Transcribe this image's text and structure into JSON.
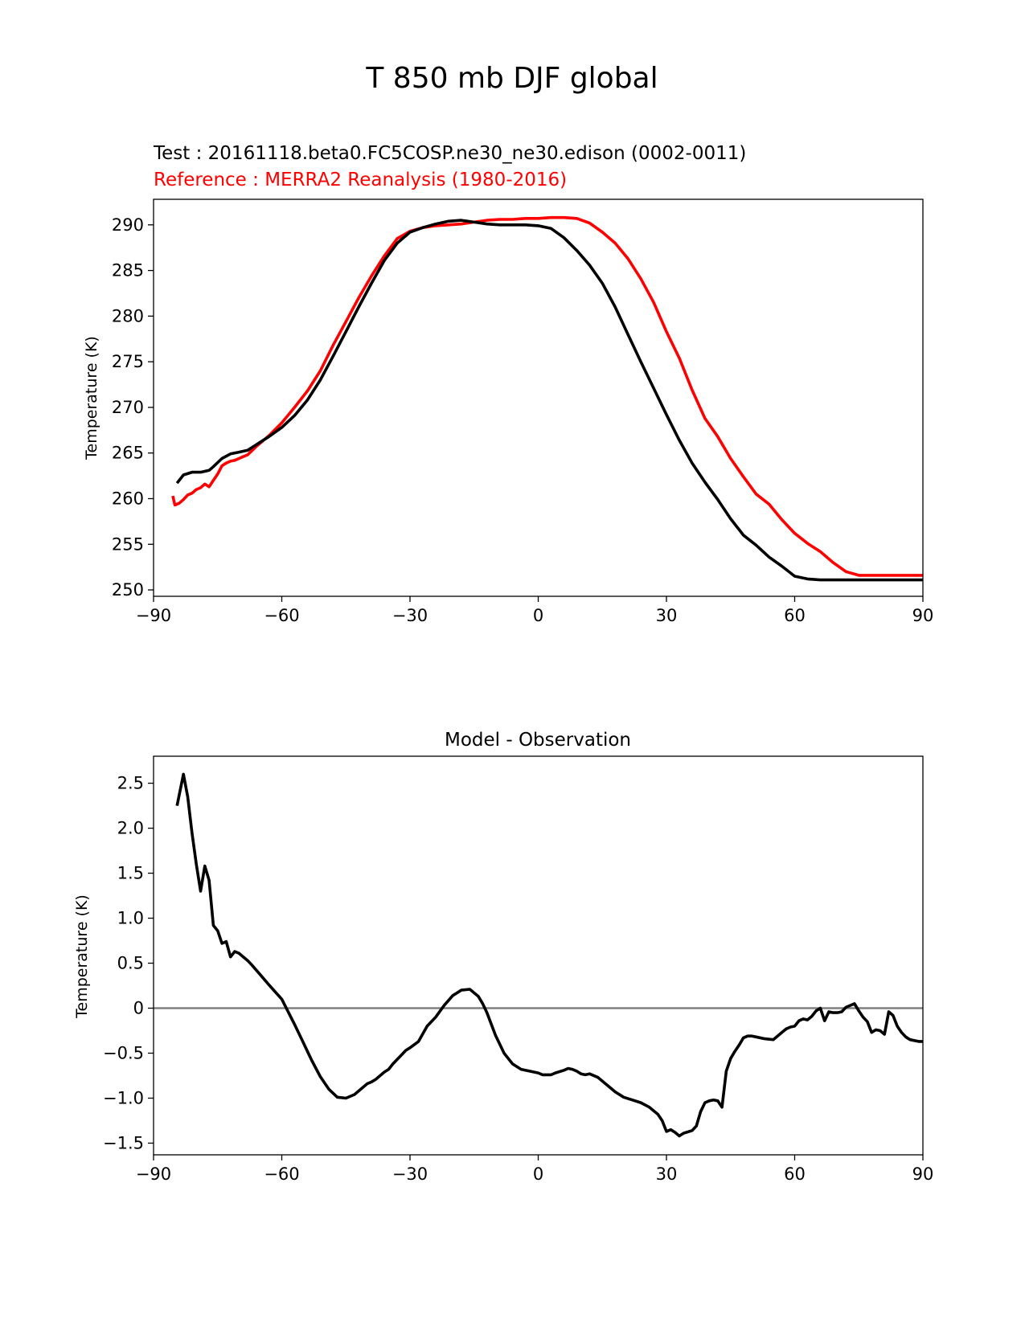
{
  "figure": {
    "suptitle": "T 850 mb DJF global"
  },
  "colors": {
    "test": "#000000",
    "reference": "#ff0000",
    "diff": "#000000",
    "zero_line": "#808080"
  },
  "chart_data": [
    {
      "type": "line",
      "test_label": "Test : 20161118.beta0.FC5COSP.ne30_ne30.edison (0002-0011)",
      "reference_label": "Reference : MERRA2 Reanalysis (1980-2016)",
      "xlabel": "",
      "ylabel": "Temperature (K)",
      "xlim": [
        -90,
        90
      ],
      "ylim": [
        249.3,
        292.8
      ],
      "xticks": [
        -90,
        -60,
        -30,
        0,
        30,
        60,
        90
      ],
      "yticks": [
        250,
        255,
        260,
        265,
        270,
        275,
        280,
        285,
        290
      ],
      "series": [
        {
          "role": "test",
          "x": [
            -84.5,
            -83,
            -81,
            -79,
            -77,
            -76,
            -74,
            -72,
            -70,
            -68,
            -66,
            -63,
            -60,
            -57,
            -54,
            -51,
            -48,
            -45,
            -42,
            -39,
            -36,
            -33,
            -30,
            -27,
            -24,
            -21,
            -18,
            -15,
            -12,
            -9,
            -6,
            -3,
            0,
            3,
            6,
            9,
            12,
            15,
            18,
            21,
            24,
            27,
            30,
            33,
            36,
            39,
            42,
            45,
            48,
            51,
            54,
            57,
            60,
            63,
            66,
            69,
            72,
            75,
            78,
            81,
            84,
            87,
            90
          ],
          "values": [
            261.7,
            262.6,
            262.9,
            262.9,
            263.1,
            263.5,
            264.4,
            264.9,
            265.1,
            265.3,
            265.9,
            266.8,
            267.8,
            269.1,
            270.8,
            273.0,
            275.6,
            278.3,
            281.0,
            283.6,
            286.1,
            288.0,
            289.2,
            289.7,
            290.1,
            290.4,
            290.5,
            290.3,
            290.1,
            290.0,
            290.0,
            290.0,
            289.9,
            289.6,
            288.6,
            287.2,
            285.6,
            283.6,
            281.0,
            278.0,
            275.0,
            272.1,
            269.2,
            266.4,
            263.9,
            261.8,
            259.9,
            257.8,
            256.0,
            254.9,
            253.6,
            252.6,
            251.5,
            251.2,
            251.1,
            251.1,
            251.1,
            251.1,
            251.1,
            251.1,
            251.1,
            251.1,
            251.1
          ]
        },
        {
          "role": "reference",
          "x": [
            -85.5,
            -85,
            -84,
            -83,
            -82,
            -81,
            -80,
            -79,
            -78,
            -77,
            -76,
            -75,
            -74,
            -73,
            -72,
            -71,
            -70,
            -69,
            -68,
            -66,
            -63,
            -60,
            -57,
            -54,
            -51,
            -48,
            -45,
            -42,
            -39,
            -36,
            -33,
            -30,
            -27,
            -24,
            -21,
            -18,
            -15,
            -12,
            -9,
            -6,
            -3,
            0,
            3,
            6,
            9,
            12,
            15,
            18,
            21,
            24,
            27,
            30,
            33,
            36,
            39,
            42,
            45,
            48,
            51,
            54,
            57,
            60,
            63,
            66,
            69,
            72,
            75,
            78,
            81,
            84,
            87,
            90
          ],
          "values": [
            260.3,
            259.3,
            259.5,
            259.9,
            260.4,
            260.6,
            261.0,
            261.2,
            261.6,
            261.3,
            262.0,
            262.7,
            263.6,
            263.9,
            264.1,
            264.2,
            264.4,
            264.6,
            264.8,
            265.7,
            266.9,
            268.3,
            270.0,
            271.8,
            274.0,
            276.8,
            279.4,
            282.0,
            284.4,
            286.6,
            288.5,
            289.3,
            289.7,
            289.9,
            290.0,
            290.1,
            290.3,
            290.5,
            290.6,
            290.6,
            290.7,
            290.7,
            290.8,
            290.8,
            290.7,
            290.2,
            289.2,
            288.0,
            286.3,
            284.1,
            281.5,
            278.3,
            275.4,
            271.9,
            268.8,
            266.8,
            264.4,
            262.4,
            260.5,
            259.4,
            257.7,
            256.2,
            255.1,
            254.2,
            253.0,
            252.0,
            251.6,
            251.6,
            251.6,
            251.6,
            251.6,
            251.6
          ]
        }
      ]
    },
    {
      "type": "line",
      "title": "Model - Observation",
      "xlabel": "",
      "ylabel": "Temperature (K)",
      "xlim": [
        -90,
        90
      ],
      "ylim": [
        -1.63,
        2.8
      ],
      "xticks": [
        -90,
        -60,
        -30,
        0,
        30,
        60,
        90
      ],
      "yticks": [
        -1.5,
        -1.0,
        -0.5,
        0.0,
        0.5,
        1.0,
        1.5,
        2.0,
        2.5
      ],
      "reference_line": 0.0,
      "series": [
        {
          "role": "diff",
          "x": [
            -84.5,
            -83,
            -82,
            -81,
            -80,
            -79,
            -78,
            -77,
            -76,
            -75,
            -74,
            -73,
            -72,
            -71,
            -70,
            -69,
            -68,
            -67,
            -65,
            -63,
            -60,
            -57,
            -55,
            -54,
            -53,
            -51,
            -49,
            -47,
            -45,
            -43,
            -41,
            -40,
            -39,
            -38,
            -36,
            -35,
            -34,
            -32,
            -31,
            -30,
            -28,
            -26,
            -24,
            -22,
            -20,
            -18,
            -16,
            -14,
            -13,
            -12,
            -10,
            -8,
            -6,
            -4,
            -2,
            -1,
            0,
            1,
            3,
            4,
            6,
            7,
            8,
            9,
            10,
            11,
            12,
            14,
            16,
            18,
            20,
            22,
            24,
            26,
            28,
            29,
            30,
            31,
            32,
            33,
            34,
            36,
            37,
            38,
            39,
            40,
            41,
            42,
            43,
            44,
            45,
            46,
            47,
            48,
            49,
            50,
            51,
            53,
            55,
            56,
            57,
            58,
            59,
            60,
            61,
            62,
            63,
            64,
            65,
            66,
            67,
            68,
            69,
            70,
            71,
            72,
            73,
            74,
            75,
            76,
            77,
            78,
            79,
            80,
            81,
            82,
            83,
            84,
            85,
            86,
            87,
            88,
            89,
            90
          ],
          "values": [
            2.25,
            2.6,
            2.35,
            1.95,
            1.6,
            1.3,
            1.58,
            1.42,
            0.92,
            0.86,
            0.72,
            0.74,
            0.57,
            0.63,
            0.61,
            0.57,
            0.53,
            0.48,
            0.37,
            0.26,
            0.1,
            -0.18,
            -0.38,
            -0.48,
            -0.58,
            -0.76,
            -0.9,
            -0.99,
            -1.0,
            -0.96,
            -0.88,
            -0.84,
            -0.82,
            -0.79,
            -0.71,
            -0.68,
            -0.62,
            -0.52,
            -0.47,
            -0.44,
            -0.37,
            -0.2,
            -0.1,
            0.03,
            0.14,
            0.2,
            0.21,
            0.13,
            0.05,
            -0.05,
            -0.3,
            -0.5,
            -0.62,
            -0.68,
            -0.7,
            -0.71,
            -0.72,
            -0.74,
            -0.74,
            -0.72,
            -0.69,
            -0.67,
            -0.68,
            -0.7,
            -0.73,
            -0.74,
            -0.73,
            -0.77,
            -0.85,
            -0.93,
            -0.99,
            -1.02,
            -1.05,
            -1.1,
            -1.18,
            -1.25,
            -1.37,
            -1.35,
            -1.38,
            -1.42,
            -1.39,
            -1.36,
            -1.31,
            -1.15,
            -1.05,
            -1.03,
            -1.02,
            -1.03,
            -1.1,
            -0.7,
            -0.56,
            -0.48,
            -0.41,
            -0.33,
            -0.31,
            -0.31,
            -0.32,
            -0.34,
            -0.35,
            -0.31,
            -0.27,
            -0.23,
            -0.21,
            -0.2,
            -0.14,
            -0.12,
            -0.13,
            -0.09,
            -0.03,
            0.0,
            -0.14,
            -0.04,
            -0.05,
            -0.05,
            -0.04,
            0.01,
            0.03,
            0.05,
            -0.03,
            -0.1,
            -0.15,
            -0.27,
            -0.24,
            -0.25,
            -0.29,
            -0.04,
            -0.08,
            -0.2,
            -0.27,
            -0.32,
            -0.35,
            -0.36,
            -0.37,
            -0.37
          ]
        }
      ]
    }
  ]
}
